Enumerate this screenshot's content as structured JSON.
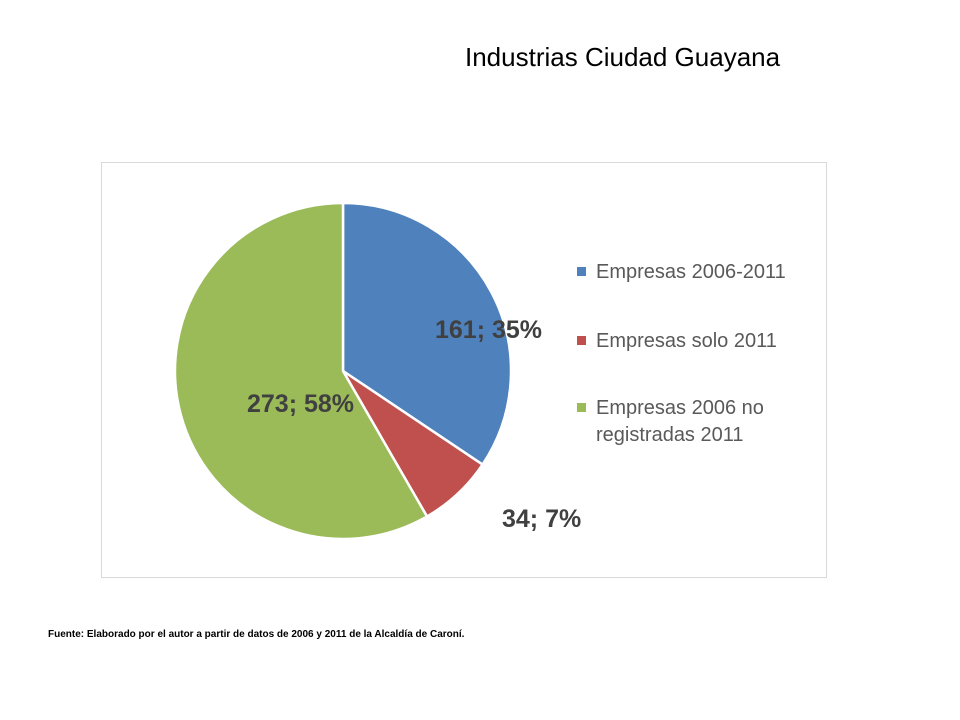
{
  "title": "Industrias Ciudad Guayana",
  "source_note": "Fuente: Elaborado por el autor a partir de datos de 2006 y 2011 de la Alcaldía de Caroní.",
  "chart_data": {
    "type": "pie",
    "title": "Industrias Ciudad Guayana",
    "legend_position": "right",
    "start_angle_deg": 0,
    "direction": "clockwise",
    "slices": [
      {
        "label": "Empresas 2006-2011",
        "value": 161,
        "percent": 35,
        "data_label": "161; 35%",
        "color": "#4f81bd"
      },
      {
        "label": "Empresas solo 2011",
        "value": 34,
        "percent": 7,
        "data_label": "34; 7%",
        "color": "#c0504d"
      },
      {
        "label": "Empresas 2006 no registradas 2011",
        "value": 273,
        "percent": 58,
        "data_label": "273; 58%",
        "color": "#9bbb59"
      }
    ]
  }
}
